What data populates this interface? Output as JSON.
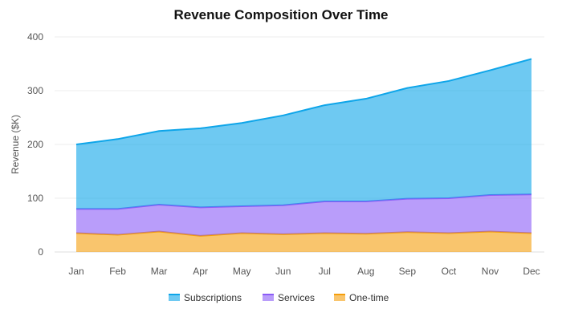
{
  "chart_data": {
    "type": "area",
    "stacked": true,
    "title": "Revenue Composition Over Time",
    "xlabel": "",
    "ylabel": "Revenue ($K)",
    "ylim": [
      0,
      400
    ],
    "yticks": [
      0,
      100,
      200,
      300,
      400
    ],
    "grid": true,
    "legend_position": "bottom",
    "categories": [
      "Jan",
      "Feb",
      "Mar",
      "Apr",
      "May",
      "Jun",
      "Jul",
      "Aug",
      "Sep",
      "Oct",
      "Nov",
      "Dec"
    ],
    "series": [
      {
        "name": "One-time",
        "color": "#f59e0b",
        "values": [
          35,
          32,
          38,
          30,
          35,
          33,
          35,
          34,
          37,
          35,
          38,
          35
        ]
      },
      {
        "name": "Services",
        "color": "#8b5cf6",
        "values": [
          45,
          48,
          50,
          53,
          50,
          54,
          59,
          60,
          62,
          65,
          68,
          72
        ]
      },
      {
        "name": "Subscriptions",
        "color": "#0ea5e9",
        "values": [
          120,
          130,
          137,
          147,
          155,
          167,
          179,
          191,
          206,
          218,
          232,
          252
        ]
      }
    ],
    "legend_order": [
      "Subscriptions",
      "Services",
      "One-time"
    ]
  }
}
